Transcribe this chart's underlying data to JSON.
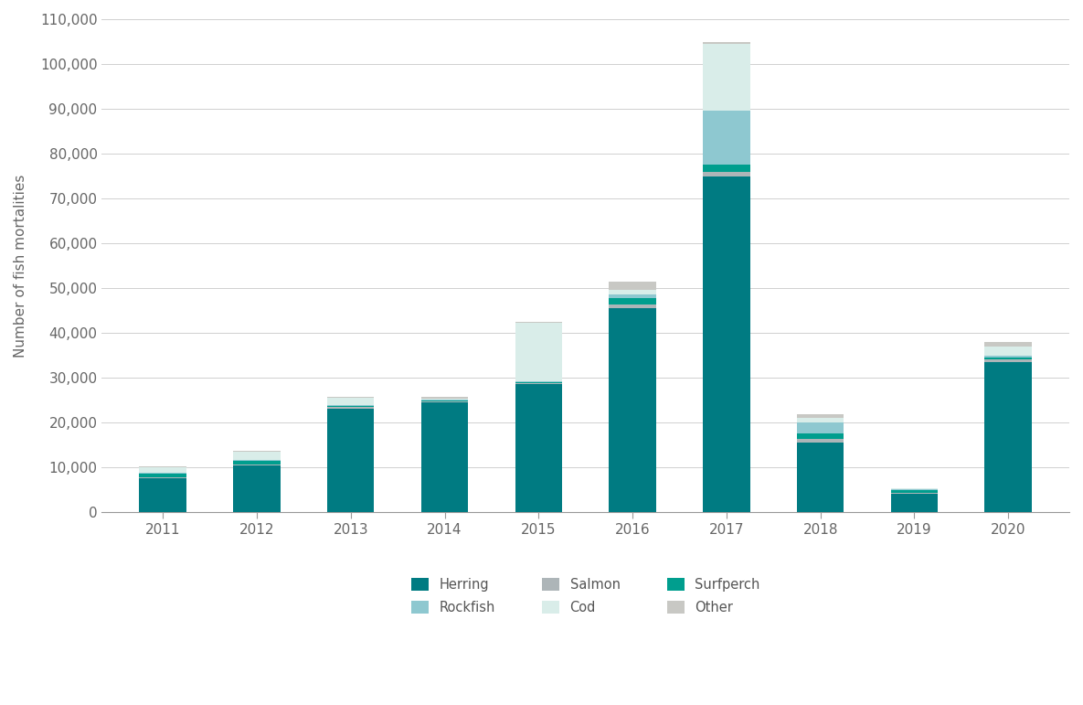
{
  "years": [
    "2011",
    "2012",
    "2013",
    "2014",
    "2015",
    "2016",
    "2017",
    "2018",
    "2019",
    "2020"
  ],
  "herring": [
    7500,
    10500,
    23000,
    24500,
    28500,
    45500,
    75000,
    15500,
    4200,
    33500
  ],
  "surfperch": [
    700,
    700,
    400,
    300,
    300,
    1500,
    1500,
    1200,
    600,
    500
  ],
  "salmon": [
    300,
    200,
    400,
    200,
    250,
    800,
    1000,
    800,
    100,
    600
  ],
  "rockfish": [
    400,
    200,
    200,
    100,
    200,
    800,
    12000,
    2500,
    250,
    400
  ],
  "cod": [
    1200,
    1800,
    1500,
    200,
    13000,
    1000,
    15000,
    1000,
    100,
    2000
  ],
  "other": [
    200,
    200,
    200,
    400,
    300,
    1800,
    500,
    900,
    100,
    900
  ],
  "colors": {
    "herring": "#007b82",
    "rockfish": "#8ec8d0",
    "salmon": "#adb5b8",
    "cod": "#d9ede9",
    "surfperch": "#009e8e",
    "other": "#c8c8c4"
  },
  "ylabel": "Number of fish mortalities",
  "ylim": [
    0,
    110000
  ],
  "yticks": [
    0,
    10000,
    20000,
    30000,
    40000,
    50000,
    60000,
    70000,
    80000,
    90000,
    100000,
    110000
  ],
  "ytick_labels": [
    "0",
    "10,000",
    "20,000",
    "30,000",
    "40,000",
    "50,000",
    "60,000",
    "70,000",
    "80,000",
    "90,000",
    "100,000",
    "110,000"
  ],
  "background_color": "#ffffff",
  "bar_width": 0.5
}
